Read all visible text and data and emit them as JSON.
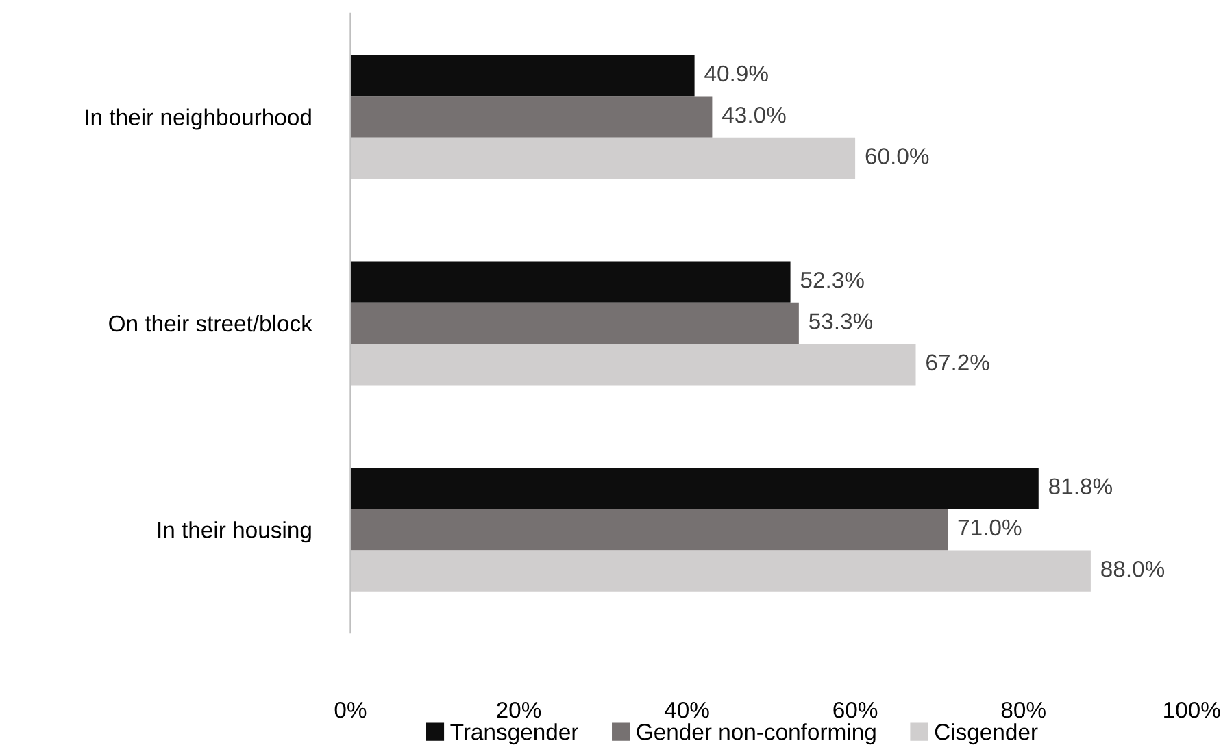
{
  "chart_data": {
    "type": "bar",
    "orientation": "horizontal",
    "categories": [
      "In their neighbourhood",
      "On their street/block",
      "In their housing"
    ],
    "series": [
      {
        "name": "Transgender",
        "color": "#0d0d0d",
        "values": [
          40.9,
          52.3,
          81.8
        ],
        "value_labels": [
          "40.9%",
          "52.3%",
          "81.8%"
        ]
      },
      {
        "name": "Gender non-conforming",
        "color": "#767171",
        "values": [
          43.0,
          53.3,
          71.0
        ],
        "value_labels": [
          "43.0%",
          "53.3%",
          "71.0%"
        ]
      },
      {
        "name": "Cisgender",
        "color": "#d0cece",
        "values": [
          60.0,
          67.2,
          88.0
        ],
        "value_labels": [
          "60.0%",
          "67.2%",
          "88.0%"
        ]
      }
    ],
    "xlim": [
      0,
      100
    ],
    "xticks": [
      {
        "value": 0,
        "label": "0%"
      },
      {
        "value": 20,
        "label": "20%"
      },
      {
        "value": 40,
        "label": "40%"
      },
      {
        "value": 60,
        "label": "60%"
      },
      {
        "value": 80,
        "label": "80%"
      },
      {
        "value": 100,
        "label": "100%"
      }
    ],
    "grid": false,
    "legend": "bottom"
  }
}
